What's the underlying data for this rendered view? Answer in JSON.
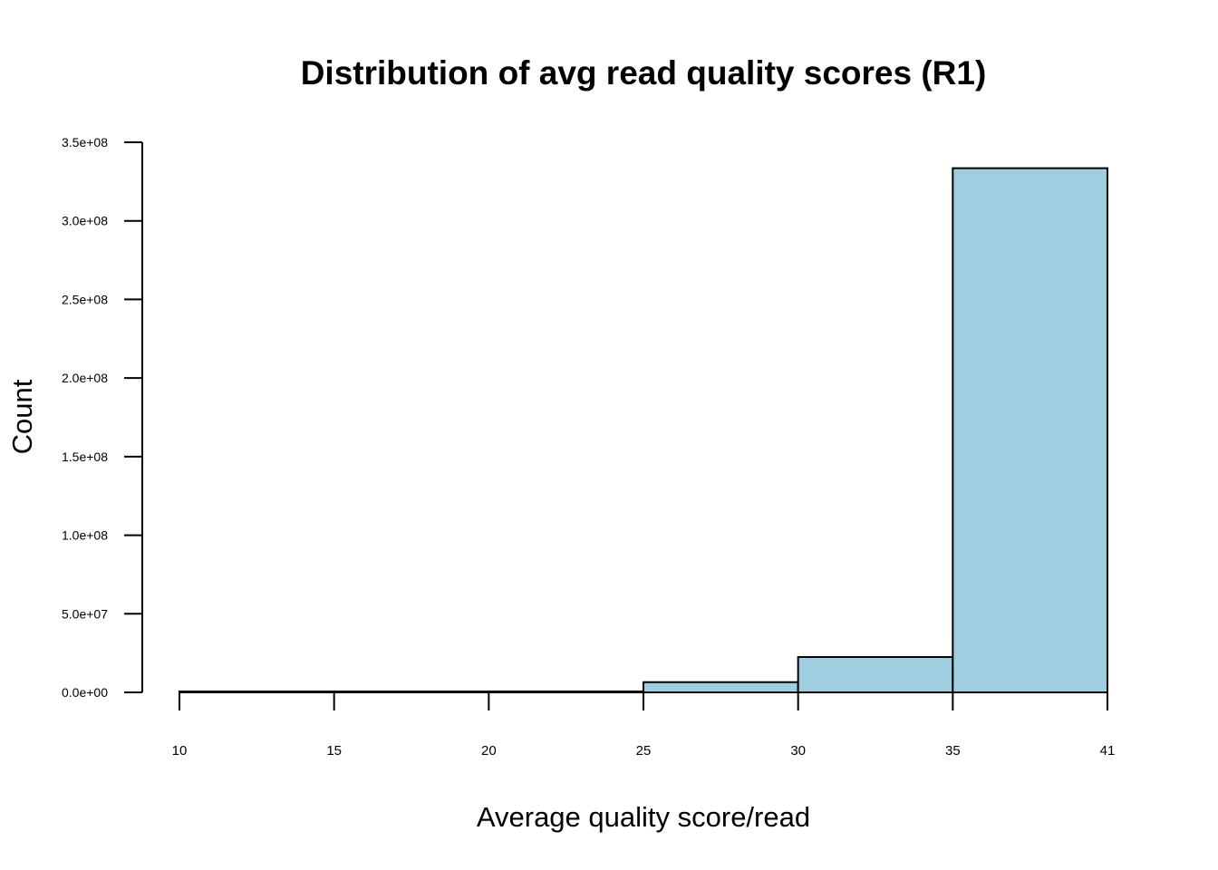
{
  "chart_data": {
    "type": "bar",
    "title": "Distribution of avg read quality scores (R1)",
    "xlabel": "Average quality score/read",
    "ylabel": "Count",
    "bins": [
      {
        "start": 10,
        "end": 15,
        "value": 0
      },
      {
        "start": 15,
        "end": 20,
        "value": 0
      },
      {
        "start": 20,
        "end": 25,
        "value": 600000
      },
      {
        "start": 25,
        "end": 30,
        "value": 6500000
      },
      {
        "start": 30,
        "end": 35,
        "value": 22500000
      },
      {
        "start": 35,
        "end": 41,
        "value": 333500000
      }
    ],
    "x_ticks": [
      10,
      15,
      20,
      25,
      30,
      35,
      41
    ],
    "x_tick_labels": [
      "10",
      "15",
      "20",
      "25",
      "30",
      "35",
      "41"
    ],
    "y_ticks": [
      0,
      50000000,
      100000000,
      150000000,
      200000000,
      250000000,
      300000000,
      350000000
    ],
    "y_tick_labels": [
      "0.0e+00",
      "5.0e+07",
      "1.0e+08",
      "1.5e+08",
      "2.0e+08",
      "2.5e+08",
      "3.0e+08",
      "3.5e+08"
    ],
    "ylim": [
      0,
      350000000
    ],
    "bar_color": "#9ecfe0",
    "edge_color": "#000000",
    "grid": false,
    "legend": "none"
  }
}
